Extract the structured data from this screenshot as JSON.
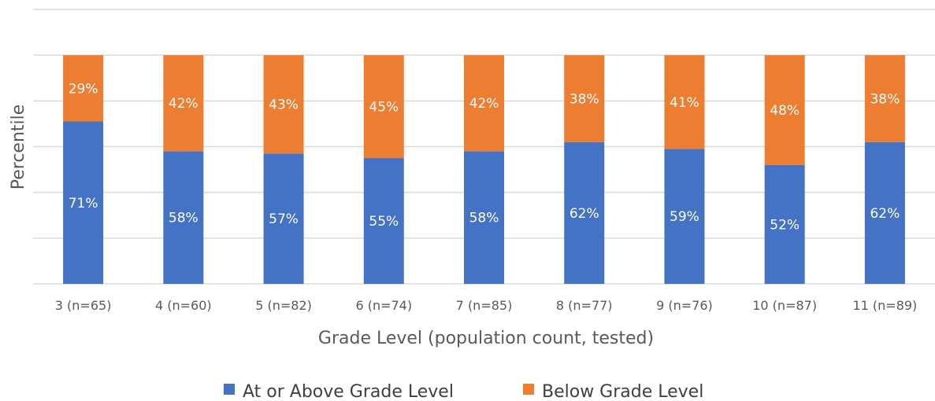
{
  "chart_data": {
    "type": "bar",
    "stacked": true,
    "categories": [
      "3 (n=65)",
      "4 (n=60)",
      "5 (n=82)",
      "6 (n=74)",
      "7 (n=85)",
      "8 (n=77)",
      "9 (n=76)",
      "10 (n=87)",
      "11 (n=89)"
    ],
    "series": [
      {
        "name": "At or Above Grade Level",
        "color": "#4472C4",
        "values": [
          71,
          58,
          57,
          55,
          58,
          62,
          59,
          52,
          62
        ],
        "labels": [
          "71%",
          "58%",
          "57%",
          "55%",
          "58%",
          "62%",
          "59%",
          "52%",
          "62%"
        ]
      },
      {
        "name": "Below Grade Level",
        "color": "#ED7D31",
        "values": [
          29,
          42,
          43,
          45,
          42,
          38,
          41,
          48,
          38
        ],
        "labels": [
          "29%",
          "42%",
          "43%",
          "45%",
          "42%",
          "38%",
          "41%",
          "48%",
          "38%"
        ]
      }
    ],
    "xlabel": "Grade Level (population count, tested)",
    "ylabel": "Percentile",
    "ylim": [
      0,
      120
    ],
    "grid": true,
    "legend": "bottom",
    "gridline_color": "#d9d9d9"
  }
}
